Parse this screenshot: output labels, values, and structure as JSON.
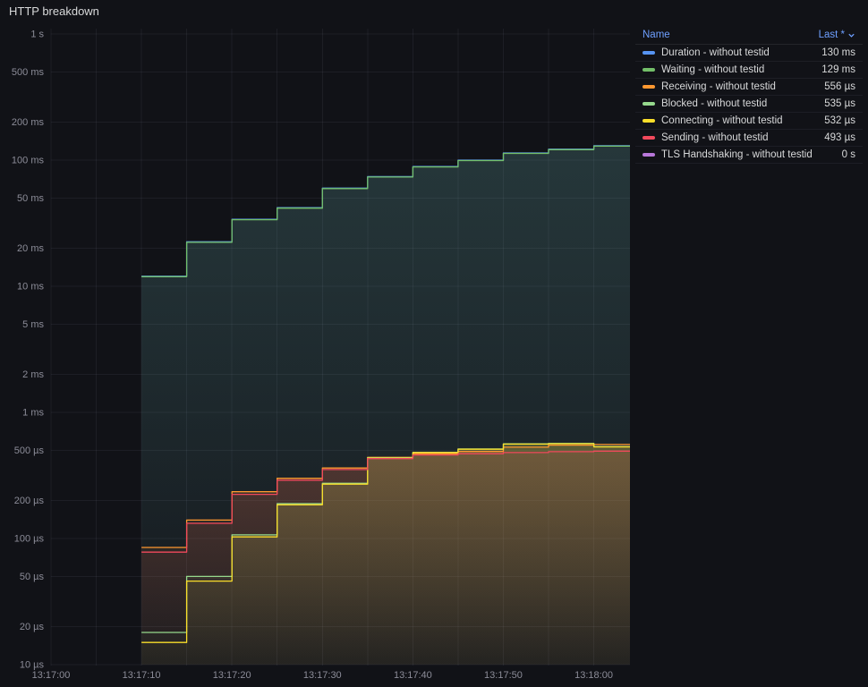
{
  "panel": {
    "title": "HTTP breakdown"
  },
  "legend": {
    "name_header": "Name",
    "last_header": "Last *",
    "sort_direction": "desc"
  },
  "chart_data": {
    "type": "line",
    "title": "HTTP breakdown",
    "line_interpolation": "step-after",
    "grid": true,
    "legend_position": "right-top",
    "point_value_unit": "µs",
    "y_axis": {
      "scale": "log10",
      "unit": "duration-seconds",
      "min": 1e-05,
      "max": 1,
      "ticks": [
        {
          "v": 1,
          "label": "1 s"
        },
        {
          "v": 0.5,
          "label": "500 ms"
        },
        {
          "v": 0.2,
          "label": "200 ms"
        },
        {
          "v": 0.1,
          "label": "100 ms"
        },
        {
          "v": 0.05,
          "label": "50 ms"
        },
        {
          "v": 0.02,
          "label": "20 ms"
        },
        {
          "v": 0.01,
          "label": "10 ms"
        },
        {
          "v": 0.005,
          "label": "5 ms"
        },
        {
          "v": 0.002,
          "label": "2 ms"
        },
        {
          "v": 0.001,
          "label": "1 ms"
        },
        {
          "v": 0.0005,
          "label": "500 µs"
        },
        {
          "v": 0.0002,
          "label": "200 µs"
        },
        {
          "v": 0.0001,
          "label": "100 µs"
        },
        {
          "v": 5e-05,
          "label": "50 µs"
        },
        {
          "v": 2e-05,
          "label": "20 µs"
        },
        {
          "v": 1e-05,
          "label": "10 µs"
        }
      ]
    },
    "x_axis": {
      "t_min": 0,
      "t_max": 64,
      "minor_step_s": 5,
      "base_time": "13:17:00",
      "ticks": [
        {
          "t": 0,
          "label": "13:17:00"
        },
        {
          "t": 10,
          "label": "13:17:10"
        },
        {
          "t": 20,
          "label": "13:17:20"
        },
        {
          "t": 30,
          "label": "13:17:30"
        },
        {
          "t": 40,
          "label": "13:17:40"
        },
        {
          "t": 50,
          "label": "13:17:50"
        },
        {
          "t": 60,
          "label": "13:18:00"
        }
      ]
    },
    "series": [
      {
        "name": "Duration - without testid",
        "color": "#5794F2",
        "last": "130 ms",
        "points": [
          [
            10,
            12000
          ],
          [
            15,
            22500
          ],
          [
            20,
            34000
          ],
          [
            25,
            42000
          ],
          [
            30,
            60000
          ],
          [
            35,
            74000
          ],
          [
            40,
            89000
          ],
          [
            45,
            100000
          ],
          [
            50,
            114000
          ],
          [
            55,
            122000
          ],
          [
            60,
            130000
          ]
        ]
      },
      {
        "name": "Waiting - without testid",
        "color": "#73BF69",
        "last": "129 ms",
        "points": [
          [
            10,
            11900
          ],
          [
            15,
            22300
          ],
          [
            20,
            33700
          ],
          [
            25,
            41600
          ],
          [
            30,
            59500
          ],
          [
            35,
            73400
          ],
          [
            40,
            88300
          ],
          [
            45,
            99200
          ],
          [
            50,
            113000
          ],
          [
            55,
            121000
          ],
          [
            60,
            129000
          ]
        ]
      },
      {
        "name": "Receiving - without testid",
        "color": "#FF9830",
        "last": "556 µs",
        "points": [
          [
            10,
            85
          ],
          [
            15,
            140
          ],
          [
            20,
            235
          ],
          [
            25,
            300
          ],
          [
            30,
            362
          ],
          [
            35,
            440
          ],
          [
            40,
            470
          ],
          [
            45,
            490
          ],
          [
            50,
            530
          ],
          [
            55,
            550
          ],
          [
            60,
            556
          ]
        ]
      },
      {
        "name": "Blocked - without testid",
        "color": "#96D98D",
        "last": "535 µs",
        "points": [
          [
            10,
            18
          ],
          [
            15,
            50
          ],
          [
            20,
            107
          ],
          [
            25,
            189
          ],
          [
            30,
            274
          ],
          [
            35,
            438
          ],
          [
            40,
            483
          ],
          [
            45,
            513
          ],
          [
            50,
            563
          ],
          [
            55,
            568
          ],
          [
            60,
            535
          ]
        ]
      },
      {
        "name": "Connecting - without testid",
        "color": "#FADE2A",
        "last": "532 µs",
        "points": [
          [
            10,
            15
          ],
          [
            15,
            46
          ],
          [
            20,
            103
          ],
          [
            25,
            185
          ],
          [
            30,
            270
          ],
          [
            35,
            435
          ],
          [
            40,
            480
          ],
          [
            45,
            510
          ],
          [
            50,
            560
          ],
          [
            55,
            565
          ],
          [
            60,
            532
          ]
        ]
      },
      {
        "name": "Sending - without testid",
        "color": "#F2495C",
        "last": "493 µs",
        "points": [
          [
            10,
            78
          ],
          [
            15,
            132
          ],
          [
            20,
            224
          ],
          [
            25,
            290
          ],
          [
            30,
            352
          ],
          [
            35,
            430
          ],
          [
            40,
            460
          ],
          [
            45,
            470
          ],
          [
            50,
            480
          ],
          [
            55,
            488
          ],
          [
            60,
            493
          ]
        ]
      },
      {
        "name": "TLS Handshaking - without testid",
        "color": "#B877D9",
        "last": "0 s",
        "points": []
      }
    ]
  }
}
